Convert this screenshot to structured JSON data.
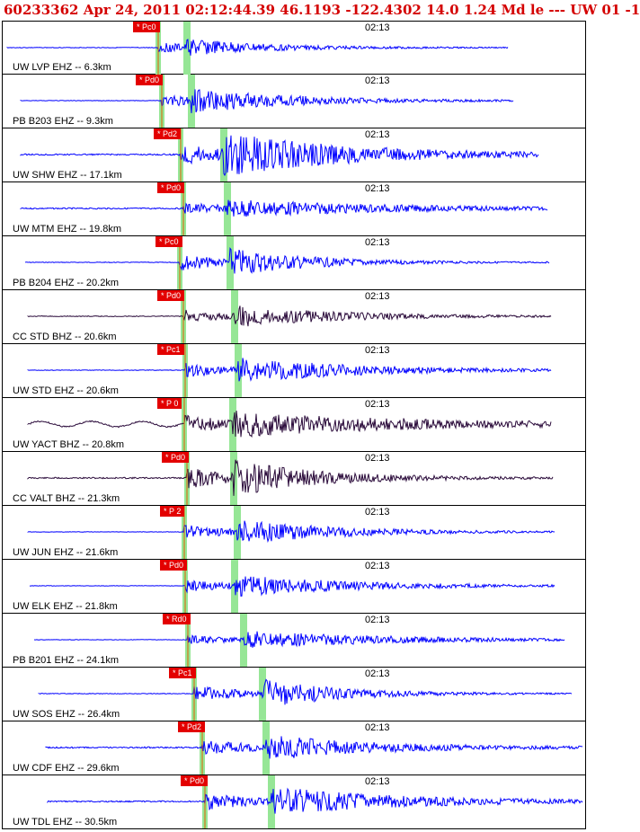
{
  "header": "60233362 Apr 24, 2011 02:12:44.39   46.1193 -122.4302 14.0 1.24 Md le --- UW 01  -1",
  "colors": {
    "header": "#d40000",
    "trace_blue": "#0000ff",
    "trace_dark": "#2a0a3a",
    "pick_red": "#e30000",
    "p_green": "#96e696"
  },
  "time_tick": "02:13",
  "stations": [
    {
      "label": "UW LVP EHZ -- 6.3km",
      "pick": "* Pc0",
      "color": "#0000ff"
    },
    {
      "label": "PB B203 EHZ -- 9.3km",
      "pick": "* Pd0",
      "color": "#0000ff"
    },
    {
      "label": "UW SHW EHZ -- 17.1km",
      "pick": "* Pd2",
      "color": "#0000ff"
    },
    {
      "label": "UW MTM EHZ -- 19.8km",
      "pick": "* Pd0",
      "color": "#0000ff"
    },
    {
      "label": "PB B204 EHZ -- 20.2km",
      "pick": "* Pc0",
      "color": "#0000ff"
    },
    {
      "label": "CC STD BHZ -- 20.6km",
      "pick": "* Pd0",
      "color": "#2a0a3a"
    },
    {
      "label": "UW STD EHZ -- 20.6km",
      "pick": "* Pc1",
      "color": "#0000ff"
    },
    {
      "label": "UW YACT BHZ -- 20.8km",
      "pick": "* P 0",
      "color": "#2a0a3a"
    },
    {
      "label": "CC VALT BHZ -- 21.3km",
      "pick": "* Pd0",
      "color": "#2a0a3a"
    },
    {
      "label": "UW JUN EHZ -- 21.6km",
      "pick": "* P 2",
      "color": "#0000ff"
    },
    {
      "label": "UW ELK EHZ -- 21.8km",
      "pick": "* Pd0",
      "color": "#0000ff"
    },
    {
      "label": "PB B201 EHZ -- 24.1km",
      "pick": "* Rd0",
      "color": "#0000ff"
    },
    {
      "label": "UW SOS EHZ -- 26.4km",
      "pick": "* Pc1",
      "color": "#0000ff"
    },
    {
      "label": "UW CDF EHZ -- 29.6km",
      "pick": "* Pd2",
      "color": "#0000ff"
    },
    {
      "label": "UW TDL EHZ -- 30.5km",
      "pick": "* Pd0",
      "color": "#0000ff"
    }
  ]
}
